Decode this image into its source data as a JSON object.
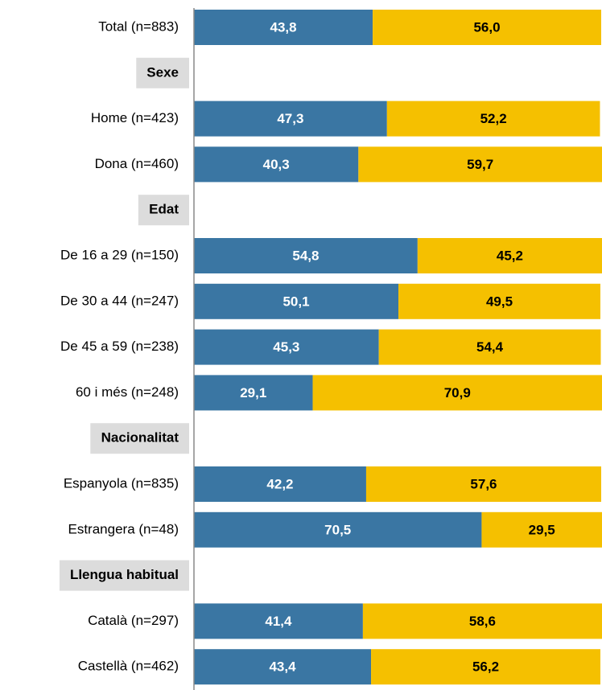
{
  "chart_data": {
    "type": "stacked_bar_horizontal",
    "categories": [
      "Total (n=883)",
      "Sexe",
      "Home (n=423)",
      "Dona (n=460)",
      "Edat",
      "De 16 a 29 (n=150)",
      "De 30 a 44 (n=247)",
      "De 45 a 59 (n=238)",
      "60 i més (n=248)",
      "Nacionalitat",
      "Espanyola (n=835)",
      "Estrangera (n=48)",
      "Llengua habitual",
      "Català (n=297)",
      "Castellà (n=462)"
    ],
    "series": [
      {
        "color": "#3a76a3",
        "label_color": "#ffffff",
        "values": [
          43.8,
          null,
          47.3,
          40.3,
          null,
          54.8,
          50.1,
          45.3,
          29.1,
          null,
          42.2,
          70.5,
          null,
          41.4,
          43.4
        ],
        "value_labels": [
          "43,8",
          null,
          "47,3",
          "40,3",
          null,
          "54,8",
          "50,1",
          "45,3",
          "29,1",
          null,
          "42,2",
          "70,5",
          null,
          "41,4",
          "43,4"
        ]
      },
      {
        "color": "#f5c000",
        "label_color": "#000000",
        "values": [
          56.0,
          null,
          52.2,
          59.7,
          null,
          45.2,
          49.5,
          54.4,
          70.9,
          null,
          57.6,
          29.5,
          null,
          58.6,
          56.2
        ],
        "value_labels": [
          "56,0",
          null,
          "52,2",
          "59,7",
          null,
          "45,2",
          "49,5",
          "54,4",
          "70,9",
          null,
          "57,6",
          "29,5",
          null,
          "58,6",
          "56,2"
        ]
      }
    ],
    "xlim": [
      0,
      100
    ]
  }
}
